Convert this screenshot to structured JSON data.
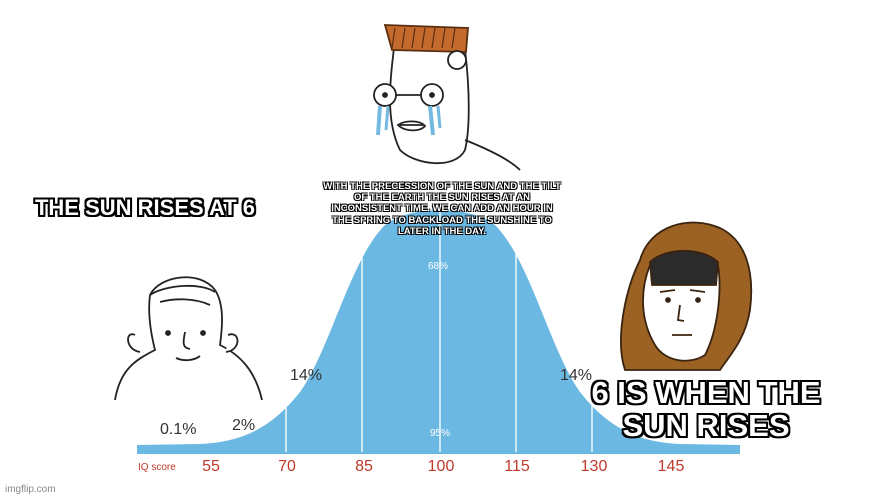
{
  "captions": {
    "left": "THE SUN RISES AT 6",
    "middle": "WITH THE PRECESSION OF THE SUN AND THE TILT OF THE EARTH THE SUN RISES AT AN INCONSISTENT TIME. WE CAN ADD AN HOUR IN THE SPRING TO BACKLOAD THE SUNSHINE TO LATER IN THE DAY.",
    "right": "6 IS WHEN THE SUN RISES"
  },
  "chart": {
    "axis_label": "IQ score",
    "ticks": [
      "55",
      "70",
      "85",
      "100",
      "115",
      "130",
      "145"
    ],
    "percent_labels": {
      "p01": "0.1%",
      "p2": "2%",
      "p14_left": "14%",
      "p14_right": "14%",
      "p68": "68%",
      "p95": "95%"
    },
    "colors": {
      "curve": "#6bb8e3",
      "ticks": "#c0392b"
    }
  },
  "characters": {
    "left": "simple-wojak-icon",
    "middle": "crying-glasses-wojak-icon",
    "right": "hooded-monk-wojak-icon"
  },
  "watermark": "imgflip.com"
}
